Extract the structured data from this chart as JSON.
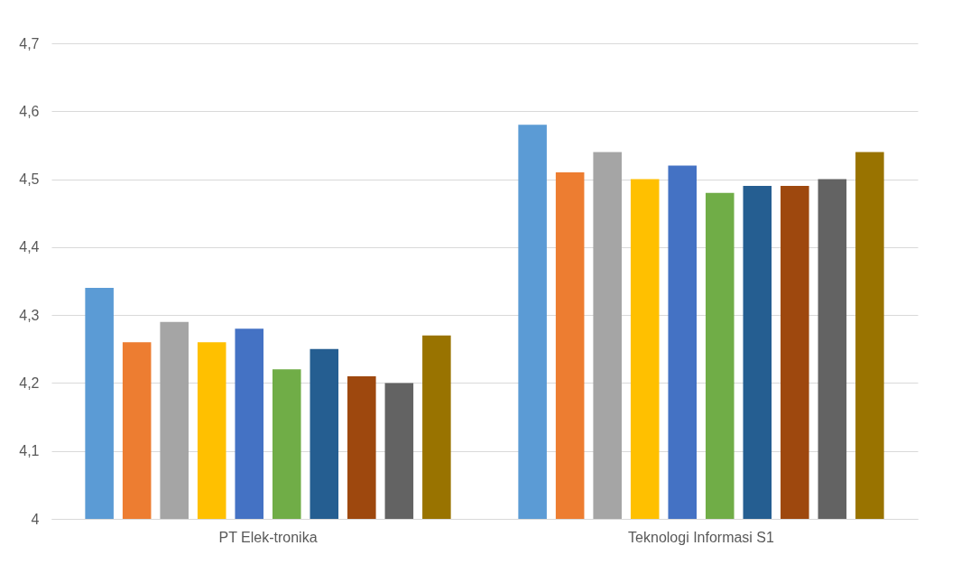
{
  "chart_data": {
    "type": "bar",
    "categories": [
      "PT Elek-tronika",
      "Teknologi Informasi S1"
    ],
    "series": [
      {
        "color": "#5b9bd5",
        "values": [
          4.34,
          4.58
        ]
      },
      {
        "color": "#ed7d31",
        "values": [
          4.26,
          4.51
        ]
      },
      {
        "color": "#a5a5a5",
        "values": [
          4.29,
          4.54
        ]
      },
      {
        "color": "#ffc000",
        "values": [
          4.26,
          4.5
        ]
      },
      {
        "color": "#4472c4",
        "values": [
          4.28,
          4.52
        ]
      },
      {
        "color": "#70ad47",
        "values": [
          4.22,
          4.48
        ]
      },
      {
        "color": "#255e91",
        "values": [
          4.25,
          4.49
        ]
      },
      {
        "color": "#9e480e",
        "values": [
          4.21,
          4.49
        ]
      },
      {
        "color": "#636363",
        "values": [
          4.2,
          4.5
        ]
      },
      {
        "color": "#997300",
        "values": [
          4.27,
          4.54
        ]
      }
    ],
    "ylim": [
      4,
      4.7
    ],
    "yticks": [
      4,
      {
        "value": 4.1,
        "label": "4,1"
      },
      {
        "value": 4.2,
        "label": "4,2"
      },
      {
        "value": 4.3,
        "label": "4,3"
      },
      {
        "value": 4.4,
        "label": "4,4"
      },
      {
        "value": 4.5,
        "label": "4,5"
      },
      {
        "value": 4.6,
        "label": "4,6"
      },
      {
        "value": 4.7,
        "label": "4,7"
      }
    ],
    "grid": "y"
  }
}
